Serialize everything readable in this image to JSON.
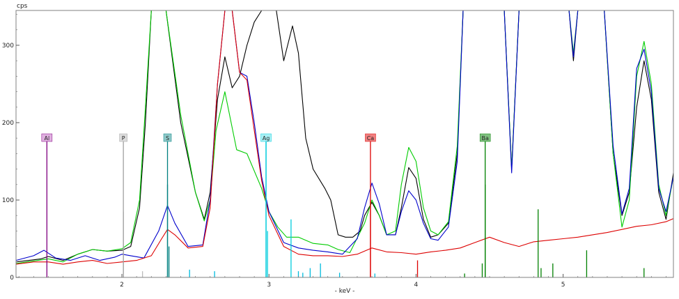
{
  "chart_data": {
    "type": "line",
    "title": "",
    "ylabel": "cps",
    "xlabel": "- keV -",
    "xlim": [
      1.28,
      5.75
    ],
    "ylim": [
      0,
      345
    ],
    "grid": false,
    "x_ticks": [
      {
        "value": 2,
        "label": "2"
      },
      {
        "value": 3,
        "label": "3"
      },
      {
        "value": 4,
        "label": "4"
      },
      {
        "value": 5,
        "label": "5"
      }
    ],
    "y_ticks": [
      {
        "value": 0,
        "label": "0"
      },
      {
        "value": 100,
        "label": "100"
      },
      {
        "value": 200,
        "label": "200"
      },
      {
        "value": 300,
        "label": "300"
      }
    ],
    "series": [
      {
        "color": "#000000",
        "points": [
          [
            1.28,
            20
          ],
          [
            1.45,
            24
          ],
          [
            1.5,
            27
          ],
          [
            1.6,
            22
          ],
          [
            1.7,
            30
          ],
          [
            1.8,
            36
          ],
          [
            1.9,
            34
          ],
          [
            2.0,
            35
          ],
          [
            2.06,
            40
          ],
          [
            2.12,
            90
          ],
          [
            2.16,
            200
          ],
          [
            2.2,
            345
          ],
          [
            2.3,
            345
          ],
          [
            2.4,
            200
          ],
          [
            2.5,
            110
          ],
          [
            2.56,
            75
          ],
          [
            2.6,
            110
          ],
          [
            2.65,
            230
          ],
          [
            2.7,
            285
          ],
          [
            2.75,
            245
          ],
          [
            2.8,
            260
          ],
          [
            2.85,
            300
          ],
          [
            2.9,
            330
          ],
          [
            2.95,
            345
          ],
          [
            3.05,
            345
          ],
          [
            3.1,
            280
          ],
          [
            3.16,
            325
          ],
          [
            3.2,
            290
          ],
          [
            3.25,
            180
          ],
          [
            3.3,
            140
          ],
          [
            3.38,
            115
          ],
          [
            3.42,
            100
          ],
          [
            3.47,
            55
          ],
          [
            3.52,
            52
          ],
          [
            3.57,
            52
          ],
          [
            3.62,
            60
          ],
          [
            3.65,
            80
          ],
          [
            3.7,
            97
          ],
          [
            3.75,
            80
          ],
          [
            3.8,
            55
          ],
          [
            3.86,
            55
          ],
          [
            3.9,
            90
          ],
          [
            3.95,
            142
          ],
          [
            4.0,
            128
          ],
          [
            4.05,
            75
          ],
          [
            4.1,
            52
          ],
          [
            4.15,
            55
          ],
          [
            4.22,
            70
          ],
          [
            4.28,
            160
          ],
          [
            4.32,
            345
          ],
          [
            4.6,
            345
          ],
          [
            4.65,
            140
          ],
          [
            4.7,
            345
          ],
          [
            5.04,
            345
          ],
          [
            5.07,
            280
          ],
          [
            5.1,
            345
          ],
          [
            5.28,
            345
          ],
          [
            5.34,
            160
          ],
          [
            5.4,
            80
          ],
          [
            5.45,
            110
          ],
          [
            5.5,
            220
          ],
          [
            5.55,
            280
          ],
          [
            5.6,
            230
          ],
          [
            5.65,
            110
          ],
          [
            5.7,
            75
          ],
          [
            5.75,
            135
          ]
        ]
      },
      {
        "color": "#00cc00",
        "points": [
          [
            1.28,
            18
          ],
          [
            1.5,
            24
          ],
          [
            1.6,
            20
          ],
          [
            1.7,
            30
          ],
          [
            1.8,
            36
          ],
          [
            1.9,
            34
          ],
          [
            2.0,
            37
          ],
          [
            2.06,
            45
          ],
          [
            2.12,
            100
          ],
          [
            2.16,
            220
          ],
          [
            2.2,
            345
          ],
          [
            2.3,
            345
          ],
          [
            2.4,
            210
          ],
          [
            2.5,
            110
          ],
          [
            2.56,
            73
          ],
          [
            2.6,
            100
          ],
          [
            2.64,
            190
          ],
          [
            2.7,
            240
          ],
          [
            2.78,
            165
          ],
          [
            2.85,
            160
          ],
          [
            2.95,
            115
          ],
          [
            3.0,
            85
          ],
          [
            3.06,
            65
          ],
          [
            3.12,
            52
          ],
          [
            3.2,
            52
          ],
          [
            3.3,
            44
          ],
          [
            3.4,
            42
          ],
          [
            3.47,
            36
          ],
          [
            3.55,
            32
          ],
          [
            3.65,
            70
          ],
          [
            3.7,
            100
          ],
          [
            3.75,
            80
          ],
          [
            3.8,
            55
          ],
          [
            3.86,
            60
          ],
          [
            3.9,
            120
          ],
          [
            3.95,
            168
          ],
          [
            4.0,
            150
          ],
          [
            4.05,
            90
          ],
          [
            4.1,
            60
          ],
          [
            4.15,
            55
          ],
          [
            4.22,
            72
          ],
          [
            4.28,
            170
          ],
          [
            4.32,
            345
          ],
          [
            4.6,
            345
          ],
          [
            4.65,
            140
          ],
          [
            4.7,
            345
          ],
          [
            5.04,
            345
          ],
          [
            5.07,
            290
          ],
          [
            5.1,
            345
          ],
          [
            5.28,
            345
          ],
          [
            5.34,
            160
          ],
          [
            5.4,
            65
          ],
          [
            5.45,
            100
          ],
          [
            5.5,
            260
          ],
          [
            5.55,
            305
          ],
          [
            5.6,
            250
          ],
          [
            5.65,
            120
          ],
          [
            5.7,
            80
          ],
          [
            5.75,
            130
          ]
        ]
      },
      {
        "color": "#0000cc",
        "points": [
          [
            1.28,
            22
          ],
          [
            1.4,
            28
          ],
          [
            1.47,
            35
          ],
          [
            1.55,
            25
          ],
          [
            1.65,
            22
          ],
          [
            1.75,
            28
          ],
          [
            1.85,
            22
          ],
          [
            1.95,
            26
          ],
          [
            2.0,
            30
          ],
          [
            2.06,
            28
          ],
          [
            2.15,
            25
          ],
          [
            2.25,
            60
          ],
          [
            2.31,
            93
          ],
          [
            2.36,
            70
          ],
          [
            2.45,
            40
          ],
          [
            2.55,
            42
          ],
          [
            2.6,
            100
          ],
          [
            2.65,
            250
          ],
          [
            2.7,
            345
          ],
          [
            2.75,
            345
          ],
          [
            2.8,
            265
          ],
          [
            2.85,
            260
          ],
          [
            2.9,
            200
          ],
          [
            2.95,
            130
          ],
          [
            3.0,
            85
          ],
          [
            3.1,
            45
          ],
          [
            3.2,
            38
          ],
          [
            3.3,
            35
          ],
          [
            3.4,
            33
          ],
          [
            3.5,
            30
          ],
          [
            3.6,
            50
          ],
          [
            3.65,
            90
          ],
          [
            3.7,
            122
          ],
          [
            3.75,
            95
          ],
          [
            3.8,
            55
          ],
          [
            3.86,
            55
          ],
          [
            3.9,
            85
          ],
          [
            3.95,
            112
          ],
          [
            4.0,
            100
          ],
          [
            4.05,
            70
          ],
          [
            4.1,
            50
          ],
          [
            4.15,
            48
          ],
          [
            4.22,
            65
          ],
          [
            4.28,
            150
          ],
          [
            4.32,
            345
          ],
          [
            4.6,
            345
          ],
          [
            4.65,
            135
          ],
          [
            4.7,
            345
          ],
          [
            5.04,
            345
          ],
          [
            5.07,
            285
          ],
          [
            5.1,
            345
          ],
          [
            5.28,
            345
          ],
          [
            5.34,
            170
          ],
          [
            5.4,
            82
          ],
          [
            5.45,
            115
          ],
          [
            5.5,
            270
          ],
          [
            5.55,
            295
          ],
          [
            5.6,
            240
          ],
          [
            5.65,
            115
          ],
          [
            5.7,
            85
          ],
          [
            5.75,
            130
          ]
        ]
      },
      {
        "color": "#dd0000",
        "points": [
          [
            1.28,
            17
          ],
          [
            1.4,
            20
          ],
          [
            1.5,
            20
          ],
          [
            1.6,
            17
          ],
          [
            1.7,
            20
          ],
          [
            1.8,
            22
          ],
          [
            1.9,
            18
          ],
          [
            2.0,
            20
          ],
          [
            2.1,
            22
          ],
          [
            2.2,
            28
          ],
          [
            2.27,
            50
          ],
          [
            2.31,
            62
          ],
          [
            2.36,
            55
          ],
          [
            2.45,
            38
          ],
          [
            2.55,
            40
          ],
          [
            2.6,
            90
          ],
          [
            2.65,
            250
          ],
          [
            2.7,
            345
          ],
          [
            2.75,
            345
          ],
          [
            2.8,
            265
          ],
          [
            2.85,
            255
          ],
          [
            2.9,
            190
          ],
          [
            2.95,
            125
          ],
          [
            3.0,
            80
          ],
          [
            3.1,
            40
          ],
          [
            3.2,
            30
          ],
          [
            3.3,
            28
          ],
          [
            3.4,
            28
          ],
          [
            3.5,
            27
          ],
          [
            3.6,
            30
          ],
          [
            3.7,
            38
          ],
          [
            3.8,
            33
          ],
          [
            3.9,
            32
          ],
          [
            4.0,
            30
          ],
          [
            4.1,
            33
          ],
          [
            4.2,
            35
          ],
          [
            4.3,
            38
          ],
          [
            4.4,
            45
          ],
          [
            4.5,
            52
          ],
          [
            4.6,
            45
          ],
          [
            4.7,
            40
          ],
          [
            4.8,
            46
          ],
          [
            4.9,
            48
          ],
          [
            5.0,
            50
          ],
          [
            5.1,
            52
          ],
          [
            5.2,
            55
          ],
          [
            5.3,
            58
          ],
          [
            5.4,
            62
          ],
          [
            5.5,
            66
          ],
          [
            5.6,
            68
          ],
          [
            5.7,
            72
          ],
          [
            5.75,
            76
          ]
        ]
      }
    ],
    "annotations": [
      {
        "label": "Al",
        "x": 1.49,
        "color": "#800080",
        "fill": "#e0b0e0"
      },
      {
        "label": "P",
        "x": 2.01,
        "color": "#a0a0a0",
        "fill": "#dcdcdc"
      },
      {
        "label": "S",
        "x": 2.31,
        "color": "#008080",
        "fill": "#8ec9c9"
      },
      {
        "label": "Ag",
        "x": 2.98,
        "color": "#00ccdd",
        "fill": "#a8f0f4"
      },
      {
        "label": "Ca",
        "x": 3.69,
        "color": "#dd0000",
        "fill": "#f08080"
      },
      {
        "label": "Ba",
        "x": 4.47,
        "color": "#008000",
        "fill": "#80c080"
      }
    ],
    "stick_lines": [
      {
        "x": 2.01,
        "h": 85,
        "color": "#bbbbbb"
      },
      {
        "x": 2.14,
        "h": 8,
        "color": "#bbbbbb"
      },
      {
        "x": 2.31,
        "h": 120,
        "color": "#008080"
      },
      {
        "x": 2.32,
        "h": 40,
        "color": "#008080"
      },
      {
        "x": 2.46,
        "h": 10,
        "color": "#00bbdd"
      },
      {
        "x": 2.63,
        "h": 8,
        "color": "#00bbdd"
      },
      {
        "x": 2.98,
        "h": 180,
        "color": "#00ccdd"
      },
      {
        "x": 2.99,
        "h": 60,
        "color": "#00ccdd"
      },
      {
        "x": 3.15,
        "h": 75,
        "color": "#00ccdd"
      },
      {
        "x": 3.2,
        "h": 8,
        "color": "#00bbdd"
      },
      {
        "x": 3.23,
        "h": 6,
        "color": "#00bbdd"
      },
      {
        "x": 3.28,
        "h": 12,
        "color": "#00bbdd"
      },
      {
        "x": 3.35,
        "h": 18,
        "color": "#00bbdd"
      },
      {
        "x": 3.48,
        "h": 6,
        "color": "#00bbdd"
      },
      {
        "x": 3.69,
        "h": 100,
        "color": "#dd0000"
      },
      {
        "x": 3.72,
        "h": 5,
        "color": "#00bbdd"
      },
      {
        "x": 4.01,
        "h": 22,
        "color": "#dd0000"
      },
      {
        "x": 4.33,
        "h": 5,
        "color": "#008000"
      },
      {
        "x": 4.45,
        "h": 18,
        "color": "#008000"
      },
      {
        "x": 4.47,
        "h": 120,
        "color": "#008000"
      },
      {
        "x": 4.83,
        "h": 88,
        "color": "#008000"
      },
      {
        "x": 4.85,
        "h": 12,
        "color": "#008000"
      },
      {
        "x": 4.93,
        "h": 18,
        "color": "#008000"
      },
      {
        "x": 5.16,
        "h": 35,
        "color": "#008000"
      },
      {
        "x": 5.55,
        "h": 12,
        "color": "#008000"
      }
    ]
  }
}
